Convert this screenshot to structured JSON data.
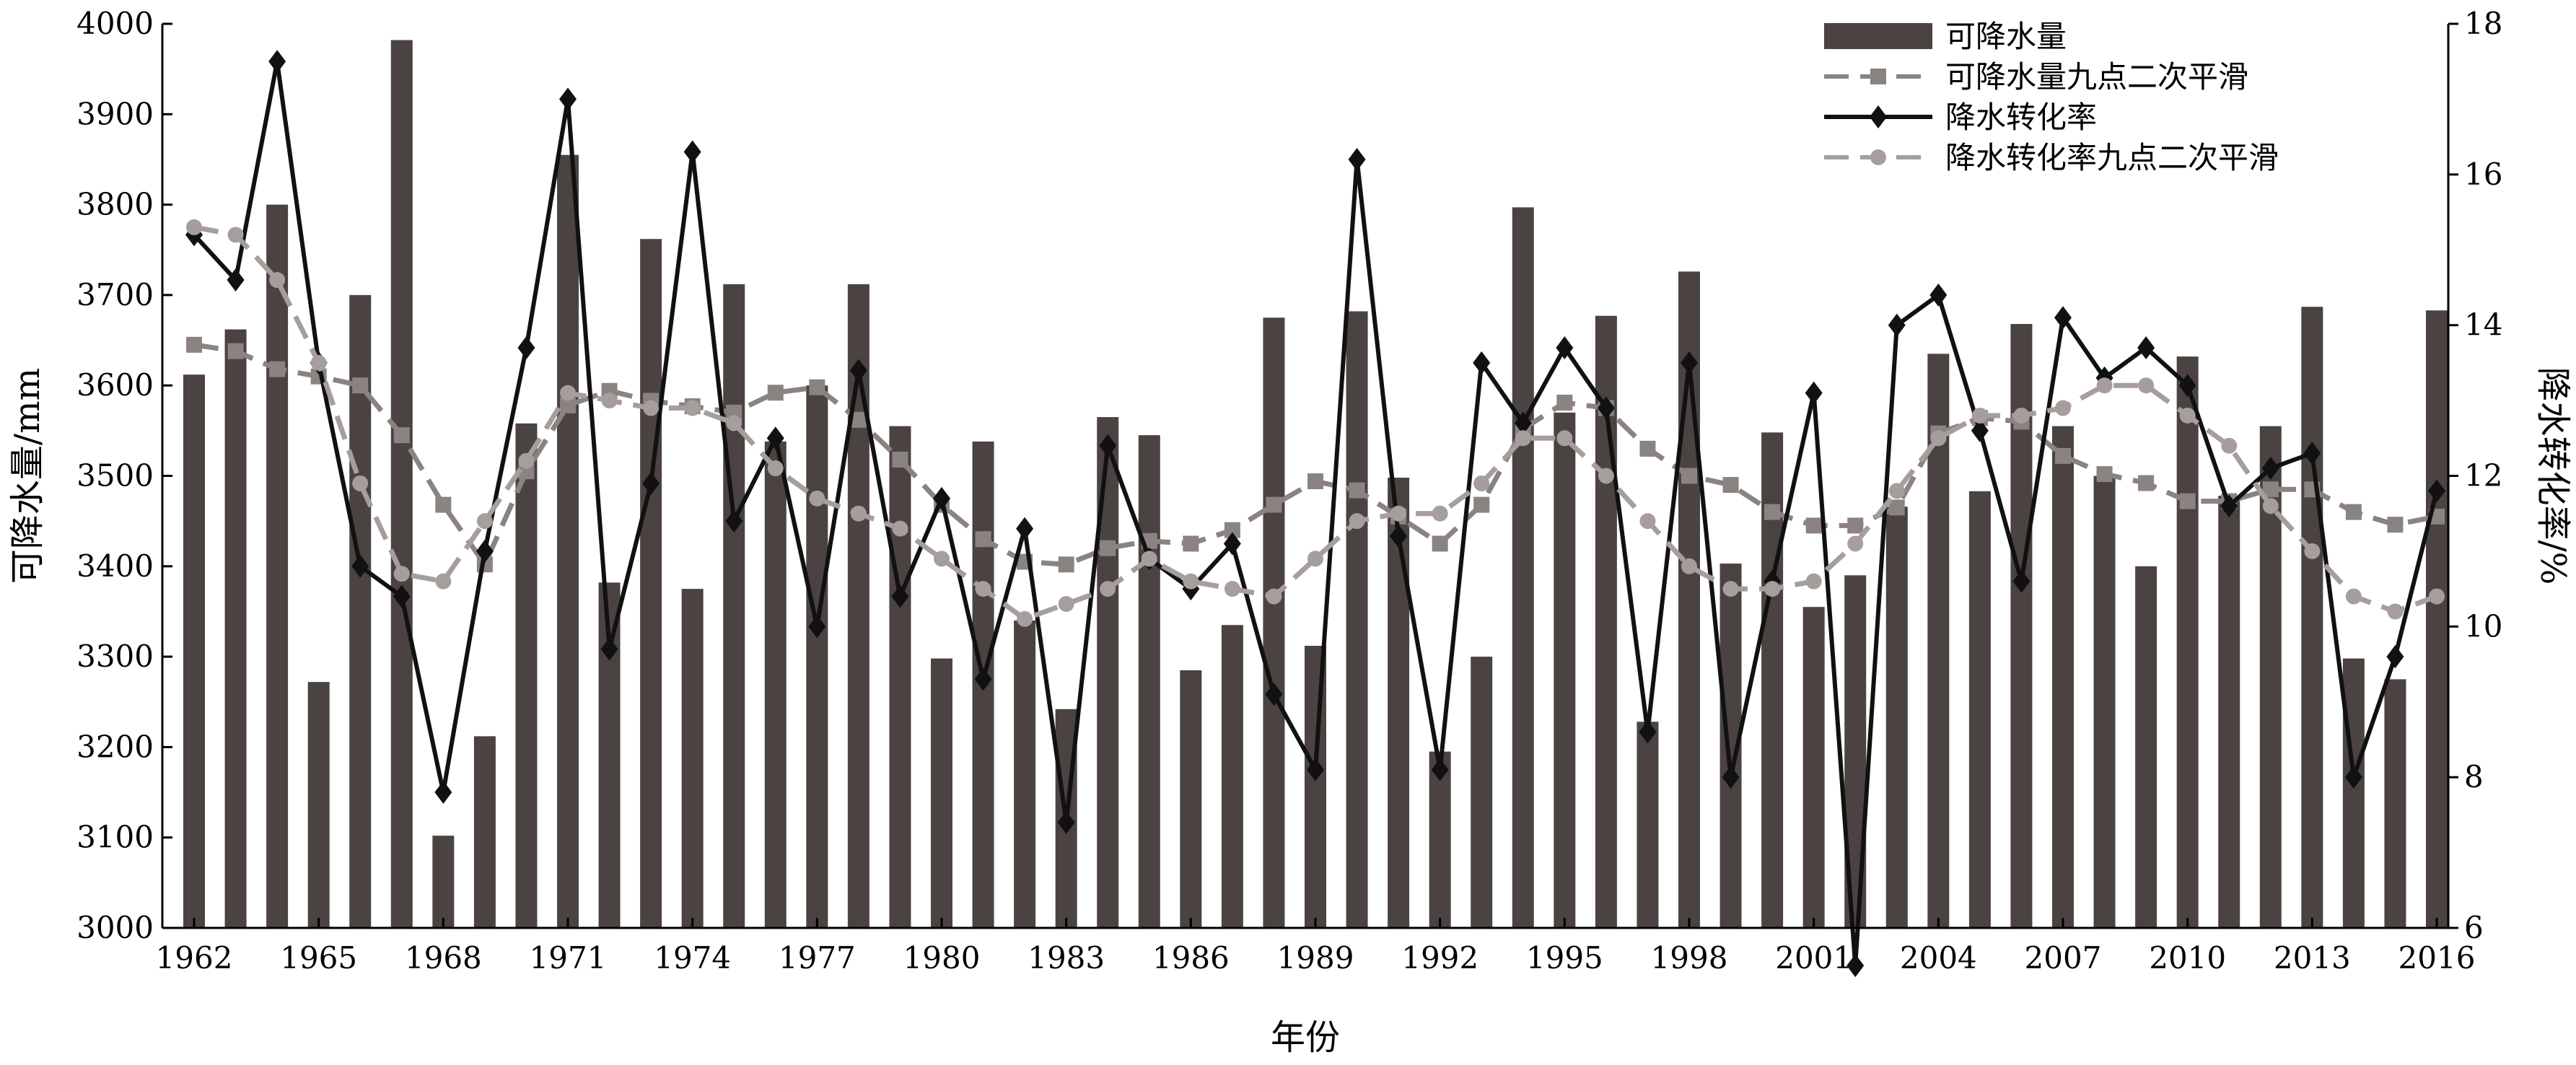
{
  "chart_data": {
    "type": "bar+line",
    "title": "",
    "xlabel": "年份",
    "ylabel": "可降水量/mm",
    "y2label": "降水转化率/%",
    "ylim": [
      3000,
      4000
    ],
    "y2lim": [
      6,
      18
    ],
    "yticks": [
      3000,
      3100,
      3200,
      3300,
      3400,
      3500,
      3600,
      3700,
      3800,
      3900,
      4000
    ],
    "y2ticks": [
      6,
      8,
      10,
      12,
      14,
      16,
      18
    ],
    "xtick_labels": [
      "1962",
      "1965",
      "1968",
      "1971",
      "1974",
      "1977",
      "1980",
      "1983",
      "1986",
      "1989",
      "1992",
      "1995",
      "1998",
      "2001",
      "2004",
      "2007",
      "2010",
      "2013",
      "2016"
    ],
    "years": [
      1962,
      1963,
      1964,
      1965,
      1966,
      1967,
      1968,
      1969,
      1970,
      1971,
      1972,
      1973,
      1974,
      1975,
      1976,
      1977,
      1978,
      1979,
      1980,
      1981,
      1982,
      1983,
      1984,
      1985,
      1986,
      1987,
      1988,
      1989,
      1990,
      1991,
      1992,
      1993,
      1994,
      1995,
      1996,
      1997,
      1998,
      1999,
      2000,
      2001,
      2002,
      2003,
      2004,
      2005,
      2006,
      2007,
      2008,
      2009,
      2010,
      2011,
      2012,
      2013,
      2014,
      2015,
      2016
    ],
    "legend_position": "top-right",
    "grid": false,
    "series": [
      {
        "name": "可降水量",
        "kind": "bar",
        "axis": "left",
        "color": "#4a4341",
        "values": [
          3612,
          3662,
          3800,
          3272,
          3700,
          3982,
          3102,
          3212,
          3558,
          3855,
          3382,
          3762,
          3375,
          3712,
          3538,
          3600,
          3712,
          3555,
          3298,
          3538,
          3340,
          3242,
          3565,
          3545,
          3285,
          3335,
          3675,
          3312,
          3682,
          3498,
          3195,
          3300,
          3797,
          3570,
          3677,
          3228,
          3726,
          3403,
          3548,
          3355,
          3390,
          3466,
          3635,
          3483,
          3668,
          3555,
          3500,
          3400,
          3632,
          3478,
          3555,
          3687,
          3298,
          3275,
          3683
        ]
      },
      {
        "name": "可降水量九点二次平滑",
        "kind": "line",
        "axis": "left",
        "color": "#8a8381",
        "marker": "square",
        "dashed": true,
        "values": [
          3645,
          3638,
          3618,
          3610,
          3600,
          3545,
          3468,
          3402,
          3505,
          3578,
          3594,
          3583,
          3577,
          3570,
          3592,
          3598,
          3562,
          3518,
          3468,
          3430,
          3405,
          3402,
          3420,
          3428,
          3425,
          3440,
          3468,
          3494,
          3484,
          3455,
          3425,
          3468,
          3552,
          3581,
          3575,
          3530,
          3500,
          3490,
          3460,
          3445,
          3445,
          3465,
          3547,
          3564,
          3560,
          3522,
          3502,
          3492,
          3472,
          3472,
          3485,
          3485,
          3460,
          3446,
          3455
        ]
      },
      {
        "name": "降水转化率",
        "kind": "line",
        "axis": "right",
        "color": "#111111",
        "marker": "diamond",
        "dashed": false,
        "values": [
          15.2,
          14.6,
          17.5,
          13.5,
          10.8,
          10.4,
          7.8,
          11.0,
          13.7,
          17.0,
          9.7,
          11.9,
          16.3,
          11.4,
          12.5,
          10.0,
          13.4,
          10.4,
          11.7,
          9.3,
          11.3,
          7.4,
          12.4,
          10.9,
          10.5,
          11.1,
          9.1,
          8.1,
          16.2,
          11.2,
          8.1,
          13.5,
          12.7,
          13.7,
          12.9,
          8.6,
          13.5,
          8.0,
          10.6,
          13.1,
          5.5,
          14.0,
          14.4,
          12.6,
          10.6,
          14.1,
          13.3,
          13.7,
          13.2,
          11.6,
          12.1,
          12.3,
          8.0,
          9.6,
          11.8
        ]
      },
      {
        "name": "降水转化率九点二次平滑",
        "kind": "line",
        "axis": "right",
        "color": "#a59e9c",
        "marker": "circle",
        "dashed": true,
        "values": [
          15.3,
          15.2,
          14.6,
          13.5,
          11.9,
          10.7,
          10.6,
          11.4,
          12.2,
          13.1,
          13.0,
          12.9,
          12.9,
          12.7,
          12.1,
          11.7,
          11.5,
          11.3,
          10.9,
          10.5,
          10.1,
          10.3,
          10.5,
          10.9,
          10.6,
          10.5,
          10.4,
          10.9,
          11.4,
          11.5,
          11.5,
          11.9,
          12.5,
          12.5,
          12.0,
          11.4,
          10.8,
          10.5,
          10.5,
          10.6,
          11.1,
          11.8,
          12.5,
          12.8,
          12.8,
          12.9,
          13.2,
          13.2,
          12.8,
          12.4,
          11.6,
          11.0,
          10.4,
          10.2,
          10.4
        ]
      }
    ]
  }
}
